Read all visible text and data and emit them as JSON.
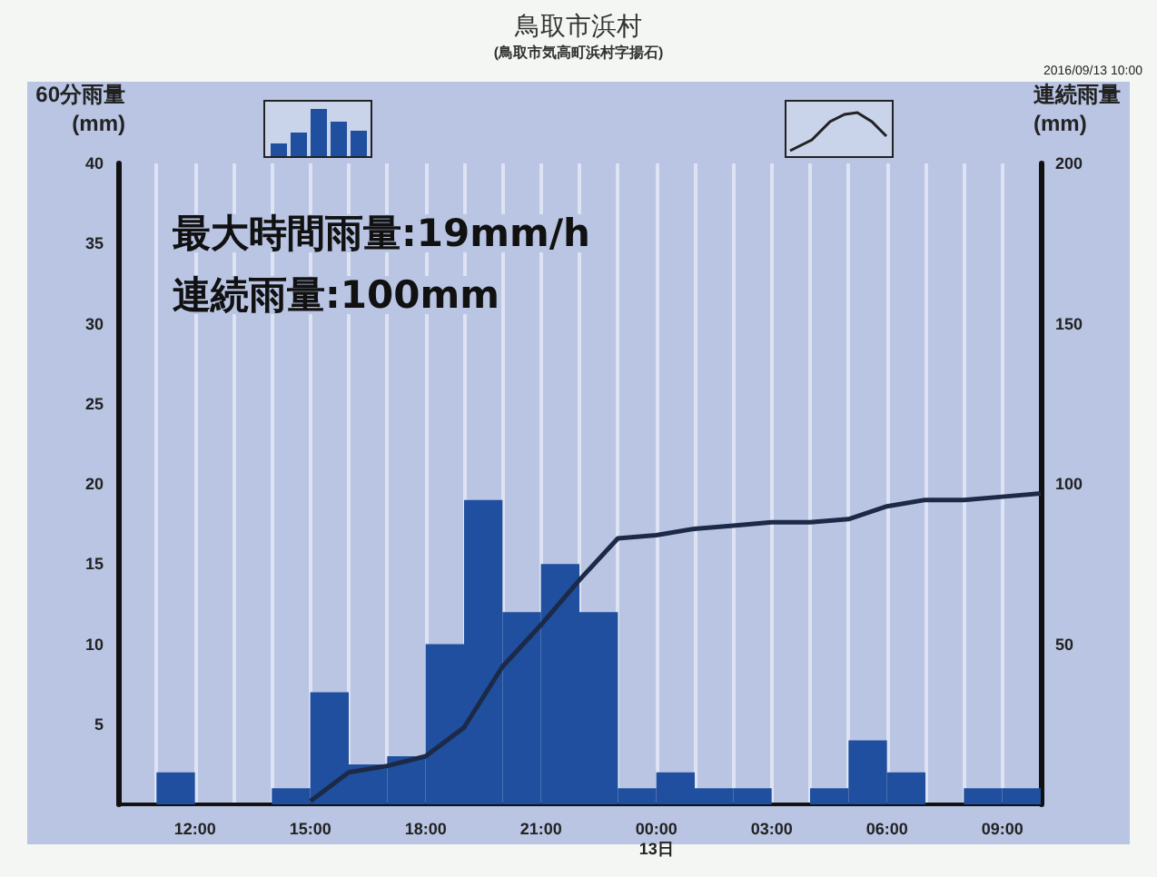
{
  "chart_data": {
    "type": "histogram",
    "title": "鳥取市浜村",
    "subtitle": "(鳥取市気高町浜村字揚石)",
    "ylabel": "60分雨量\n(mm)",
    "y2label": "連続雨量\n(mm)",
    "annotations": [
      "2016/09/13 10:00",
      "最大時間雨量:19mm/h",
      "連続雨量:100mm"
    ],
    "bins": [
      "2016-09-12T10:00",
      "2016-09-12T11:00",
      "2016-09-12T12:00",
      "2016-09-12T13:00",
      "2016-09-12T14:00",
      "2016-09-12T15:00",
      "2016-09-12T16:00",
      "2016-09-12T17:00",
      "2016-09-12T18:00",
      "2016-09-12T19:00",
      "2016-09-12T20:00",
      "2016-09-12T21:00",
      "2016-09-12T22:00",
      "2016-09-12T23:00",
      "2016-09-13T00:00",
      "2016-09-13T01:00",
      "2016-09-13T02:00",
      "2016-09-13T03:00",
      "2016-09-13T04:00",
      "2016-09-13T05:00",
      "2016-09-13T06:00",
      "2016-09-13T07:00",
      "2016-09-13T08:00",
      "2016-09-13T09:00",
      "2016-09-13T10:00"
    ],
    "values": [
      0,
      2,
      0,
      0,
      1,
      7,
      2.5,
      3,
      10,
      19,
      12,
      15,
      12,
      1,
      2,
      1,
      1,
      0,
      1,
      4,
      2,
      0,
      1,
      1
    ],
    "color": "#1f4f9e",
    "series": [
      {
        "type": "line",
        "axis": "y2",
        "color": "#1c2a48",
        "x": [
          "2016-09-12T15:00",
          "2016-09-12T16:00",
          "2016-09-12T17:00",
          "2016-09-12T18:00",
          "2016-09-12T19:00",
          "2016-09-12T20:00",
          "2016-09-12T21:00",
          "2016-09-12T22:00",
          "2016-09-12T23:00",
          "2016-09-13T00:00",
          "2016-09-13T01:00",
          "2016-09-13T02:00",
          "2016-09-13T03:00",
          "2016-09-13T04:00",
          "2016-09-13T05:00",
          "2016-09-13T06:00",
          "2016-09-13T07:00",
          "2016-09-13T08:00",
          "2016-09-13T09:00",
          "2016-09-13T10:00"
        ],
        "values": [
          1,
          10,
          12,
          15,
          24,
          43,
          56,
          70,
          83,
          84,
          86,
          87,
          88,
          88,
          89,
          93,
          95,
          95,
          96,
          97
        ]
      }
    ],
    "xlim": [
      "2016-09-12T10:00",
      "2016-09-13T10:00"
    ],
    "xticks": [
      {
        "value": "2016-09-12T10:00",
        "label": null
      },
      {
        "value": "2016-09-12T11:00",
        "label": null
      },
      {
        "value": "2016-09-12T12:00",
        "label": "12:00"
      },
      {
        "value": "2016-09-12T13:00",
        "label": null
      },
      {
        "value": "2016-09-12T14:00",
        "label": null
      },
      {
        "value": "2016-09-12T15:00",
        "label": "15:00"
      },
      {
        "value": "2016-09-12T16:00",
        "label": null
      },
      {
        "value": "2016-09-12T17:00",
        "label": null
      },
      {
        "value": "2016-09-12T18:00",
        "label": "18:00"
      },
      {
        "value": "2016-09-12T19:00",
        "label": null
      },
      {
        "value": "2016-09-12T20:00",
        "label": null
      },
      {
        "value": "2016-09-12T21:00",
        "label": "21:00"
      },
      {
        "value": "2016-09-12T22:00",
        "label": null
      },
      {
        "value": "2016-09-12T23:00",
        "label": null
      },
      {
        "value": "2016-09-13T00:00",
        "label": "00:00\n13日"
      },
      {
        "value": "2016-09-13T01:00",
        "label": null
      },
      {
        "value": "2016-09-13T02:00",
        "label": null
      },
      {
        "value": "2016-09-13T03:00",
        "label": "03:00"
      },
      {
        "value": "2016-09-13T04:00",
        "label": null
      },
      {
        "value": "2016-09-13T05:00",
        "label": null
      },
      {
        "value": "2016-09-13T06:00",
        "label": "06:00"
      },
      {
        "value": "2016-09-13T07:00",
        "label": null
      },
      {
        "value": "2016-09-13T08:00",
        "label": null
      },
      {
        "value": "2016-09-13T09:00",
        "label": "09:00"
      },
      {
        "value": "2016-09-13T10:00",
        "label": null
      }
    ],
    "ylim": [
      0,
      40
    ],
    "yticks": [
      5,
      10,
      15,
      20,
      25,
      30,
      35,
      40
    ],
    "y2lim": [
      0,
      200
    ],
    "y2ticks": [
      50,
      100,
      150,
      200
    ],
    "grid": "x",
    "marker": "none",
    "line_style": "solid"
  }
}
